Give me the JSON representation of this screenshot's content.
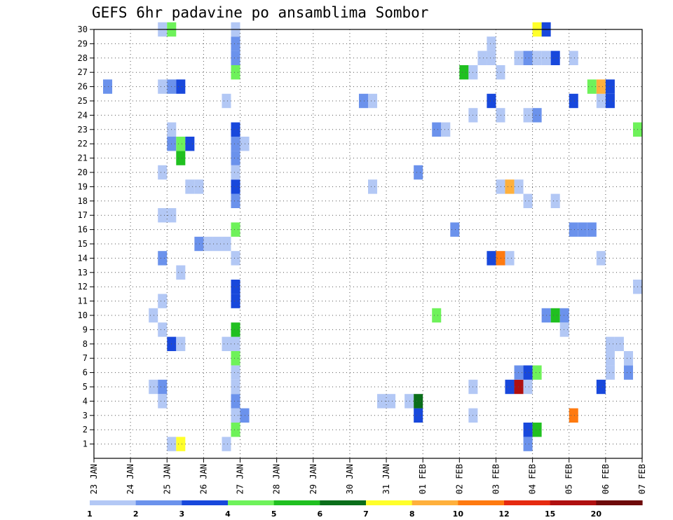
{
  "chart_data": {
    "type": "heatmap",
    "title": "GEFS 6hr padavine po ansamblima Sombor",
    "xlabel": "",
    "ylabel": "",
    "x_axis": {
      "unit": "6-hour step",
      "range": [
        0,
        60
      ],
      "tick_labels": [
        "23 JAN",
        "24 JAN",
        "25 JAN",
        "26 JAN",
        "27 JAN",
        "28 JAN",
        "29 JAN",
        "30 JAN",
        "31 JAN",
        "01 FEB",
        "02 FEB",
        "03 FEB",
        "04 FEB",
        "05 FEB",
        "06 FEB",
        "07 FEB"
      ]
    },
    "y_axis": {
      "label": "",
      "range": [
        0,
        30
      ],
      "tick_labels": [
        1,
        2,
        3,
        4,
        5,
        6,
        7,
        8,
        9,
        10,
        11,
        12,
        13,
        14,
        15,
        16,
        17,
        18,
        19,
        20,
        21,
        22,
        23,
        24,
        25,
        26,
        27,
        28,
        29,
        30
      ]
    },
    "grid": true,
    "colorbar": {
      "placement": "bottom",
      "labels": [
        "1",
        "2",
        "3",
        "4",
        "5",
        "6",
        "7",
        "8",
        "10",
        "12",
        "15",
        "20"
      ],
      "colors": [
        "#b3c8f5",
        "#6b92ec",
        "#1848dc",
        "#6ef25a",
        "#20c020",
        "#0a6e1a",
        "#ffff2a",
        "#ffb03c",
        "#ff7a10",
        "#e62a10",
        "#b01010",
        "#6e0a0a"
      ]
    },
    "color_key": {
      "c1": "#b3c8f5",
      "c2": "#6b92ec",
      "c3": "#1848dc",
      "c4": "#6ef25a",
      "c5": "#20c020",
      "c6": "#0a6e1a",
      "c7": "#ffff2a",
      "c8": "#ffb03c",
      "c10": "#ff7a10",
      "c12": "#e62a10",
      "c15": "#b01010"
    },
    "cells_by_member": {
      "30": [
        [
          7.5,
          "c1"
        ],
        [
          8.5,
          "c4"
        ],
        [
          15.5,
          "c1"
        ],
        [
          48.5,
          "c7"
        ],
        [
          49.5,
          "c3"
        ]
      ],
      "29": [
        [
          15.5,
          "c2"
        ],
        [
          43.5,
          "c1"
        ]
      ],
      "28": [
        [
          15.5,
          "c2"
        ],
        [
          42.5,
          "c1"
        ],
        [
          43.5,
          "c1"
        ],
        [
          46.5,
          "c1"
        ],
        [
          47.5,
          "c2"
        ],
        [
          48.5,
          "c1"
        ],
        [
          49.5,
          "c1"
        ],
        [
          50.5,
          "c3"
        ],
        [
          52.5,
          "c1"
        ]
      ],
      "27": [
        [
          15.5,
          "c4"
        ],
        [
          40.5,
          "c5"
        ],
        [
          41.5,
          "c1"
        ],
        [
          44.5,
          "c1"
        ]
      ],
      "26": [
        [
          1.5,
          "c2"
        ],
        [
          7.5,
          "c1"
        ],
        [
          8.5,
          "c2"
        ],
        [
          9.5,
          "c3"
        ],
        [
          54.5,
          "c4"
        ],
        [
          55.5,
          "c8"
        ],
        [
          56.5,
          "c3"
        ]
      ],
      "25": [
        [
          14.5,
          "c1"
        ],
        [
          29.5,
          "c2"
        ],
        [
          30.5,
          "c1"
        ],
        [
          43.5,
          "c3"
        ],
        [
          52.5,
          "c3"
        ],
        [
          55.5,
          "c1"
        ],
        [
          56.5,
          "c3"
        ]
      ],
      "24": [
        [
          41.5,
          "c1"
        ],
        [
          44.5,
          "c1"
        ],
        [
          47.5,
          "c1"
        ],
        [
          48.5,
          "c2"
        ]
      ],
      "23": [
        [
          8.5,
          "c1"
        ],
        [
          15.5,
          "c3"
        ],
        [
          37.5,
          "c2"
        ],
        [
          38.5,
          "c1"
        ],
        [
          59.5,
          "c4"
        ]
      ],
      "22": [
        [
          8.5,
          "c2"
        ],
        [
          9.5,
          "c4"
        ],
        [
          10.5,
          "c3"
        ],
        [
          15.5,
          "c2"
        ],
        [
          16.5,
          "c1"
        ]
      ],
      "21": [
        [
          9.5,
          "c5"
        ],
        [
          15.5,
          "c2"
        ]
      ],
      "20": [
        [
          7.5,
          "c1"
        ],
        [
          15.5,
          "c1"
        ],
        [
          35.5,
          "c2"
        ]
      ],
      "19": [
        [
          10.5,
          "c1"
        ],
        [
          11.5,
          "c1"
        ],
        [
          15.5,
          "c3"
        ],
        [
          30.5,
          "c1"
        ],
        [
          44.5,
          "c1"
        ],
        [
          45.5,
          "c8"
        ],
        [
          46.5,
          "c1"
        ]
      ],
      "18": [
        [
          15.5,
          "c2"
        ],
        [
          47.5,
          "c1"
        ],
        [
          50.5,
          "c1"
        ]
      ],
      "17": [
        [
          7.5,
          "c1"
        ],
        [
          8.5,
          "c1"
        ]
      ],
      "16": [
        [
          15.5,
          "c4"
        ],
        [
          39.5,
          "c2"
        ],
        [
          52.5,
          "c2"
        ],
        [
          53.5,
          "c2"
        ],
        [
          54.5,
          "c2"
        ]
      ],
      "15": [
        [
          11.5,
          "c2"
        ],
        [
          12.5,
          "c1"
        ],
        [
          13.5,
          "c1"
        ],
        [
          14.5,
          "c1"
        ]
      ],
      "14": [
        [
          7.5,
          "c2"
        ],
        [
          15.5,
          "c1"
        ],
        [
          43.5,
          "c3"
        ],
        [
          44.5,
          "c10"
        ],
        [
          45.5,
          "c1"
        ],
        [
          55.5,
          "c1"
        ]
      ],
      "13": [
        [
          9.5,
          "c1"
        ]
      ],
      "12": [
        [
          15.5,
          "c3"
        ],
        [
          59.5,
          "c1"
        ]
      ],
      "11": [
        [
          7.5,
          "c1"
        ],
        [
          15.5,
          "c3"
        ]
      ],
      "10": [
        [
          6.5,
          "c1"
        ],
        [
          37.5,
          "c4"
        ],
        [
          49.5,
          "c2"
        ],
        [
          50.5,
          "c5"
        ],
        [
          51.5,
          "c2"
        ]
      ],
      "9": [
        [
          7.5,
          "c1"
        ],
        [
          15.5,
          "c5"
        ],
        [
          51.5,
          "c1"
        ]
      ],
      "8": [
        [
          8.5,
          "c3"
        ],
        [
          9.5,
          "c1"
        ],
        [
          14.5,
          "c1"
        ],
        [
          15.5,
          "c1"
        ],
        [
          56.5,
          "c1"
        ],
        [
          57.5,
          "c1"
        ]
      ],
      "7": [
        [
          15.5,
          "c4"
        ],
        [
          56.5,
          "c1"
        ],
        [
          58.5,
          "c1"
        ]
      ],
      "6": [
        [
          15.5,
          "c1"
        ],
        [
          46.5,
          "c2"
        ],
        [
          47.5,
          "c3"
        ],
        [
          48.5,
          "c4"
        ],
        [
          56.5,
          "c1"
        ],
        [
          58.5,
          "c2"
        ]
      ],
      "5": [
        [
          6.5,
          "c1"
        ],
        [
          7.5,
          "c2"
        ],
        [
          15.5,
          "c1"
        ],
        [
          41.5,
          "c1"
        ],
        [
          45.5,
          "c3"
        ],
        [
          46.5,
          "c15"
        ],
        [
          47.5,
          "c1"
        ],
        [
          55.5,
          "c3"
        ]
      ],
      "4": [
        [
          7.5,
          "c1"
        ],
        [
          15.5,
          "c2"
        ],
        [
          31.5,
          "c1"
        ],
        [
          32.5,
          "c1"
        ],
        [
          34.5,
          "c1"
        ],
        [
          35.5,
          "c6"
        ]
      ],
      "3": [
        [
          15.5,
          "c1"
        ],
        [
          16.5,
          "c2"
        ],
        [
          35.5,
          "c3"
        ],
        [
          41.5,
          "c1"
        ],
        [
          52.5,
          "c10"
        ]
      ],
      "2": [
        [
          15.5,
          "c4"
        ],
        [
          47.5,
          "c3"
        ],
        [
          48.5,
          "c5"
        ]
      ],
      "1": [
        [
          8.5,
          "c1"
        ],
        [
          9.5,
          "c7"
        ],
        [
          14.5,
          "c1"
        ],
        [
          47.5,
          "c2"
        ]
      ]
    }
  }
}
